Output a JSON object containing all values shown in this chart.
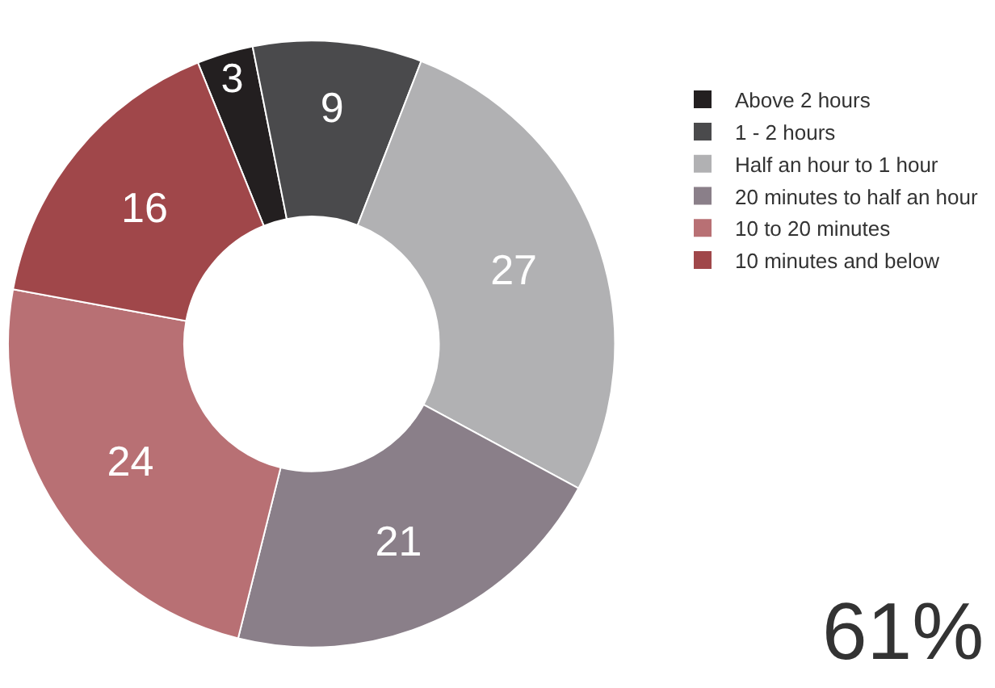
{
  "chart_data": {
    "type": "donut",
    "categories": [
      "Above 2 hours",
      "1 - 2 hours",
      "Half an hour to 1 hour",
      "20 minutes to half an hour",
      "10 to 20 minutes",
      "10 minutes and below"
    ],
    "values": [
      3,
      9,
      27,
      21,
      24,
      16
    ],
    "colors": [
      "#231f20",
      "#4a4a4c",
      "#b1b1b3",
      "#8a7f89",
      "#b87074",
      "#a0474a"
    ],
    "data_labels": true,
    "legend": "right",
    "annotations": [
      "61%"
    ]
  }
}
